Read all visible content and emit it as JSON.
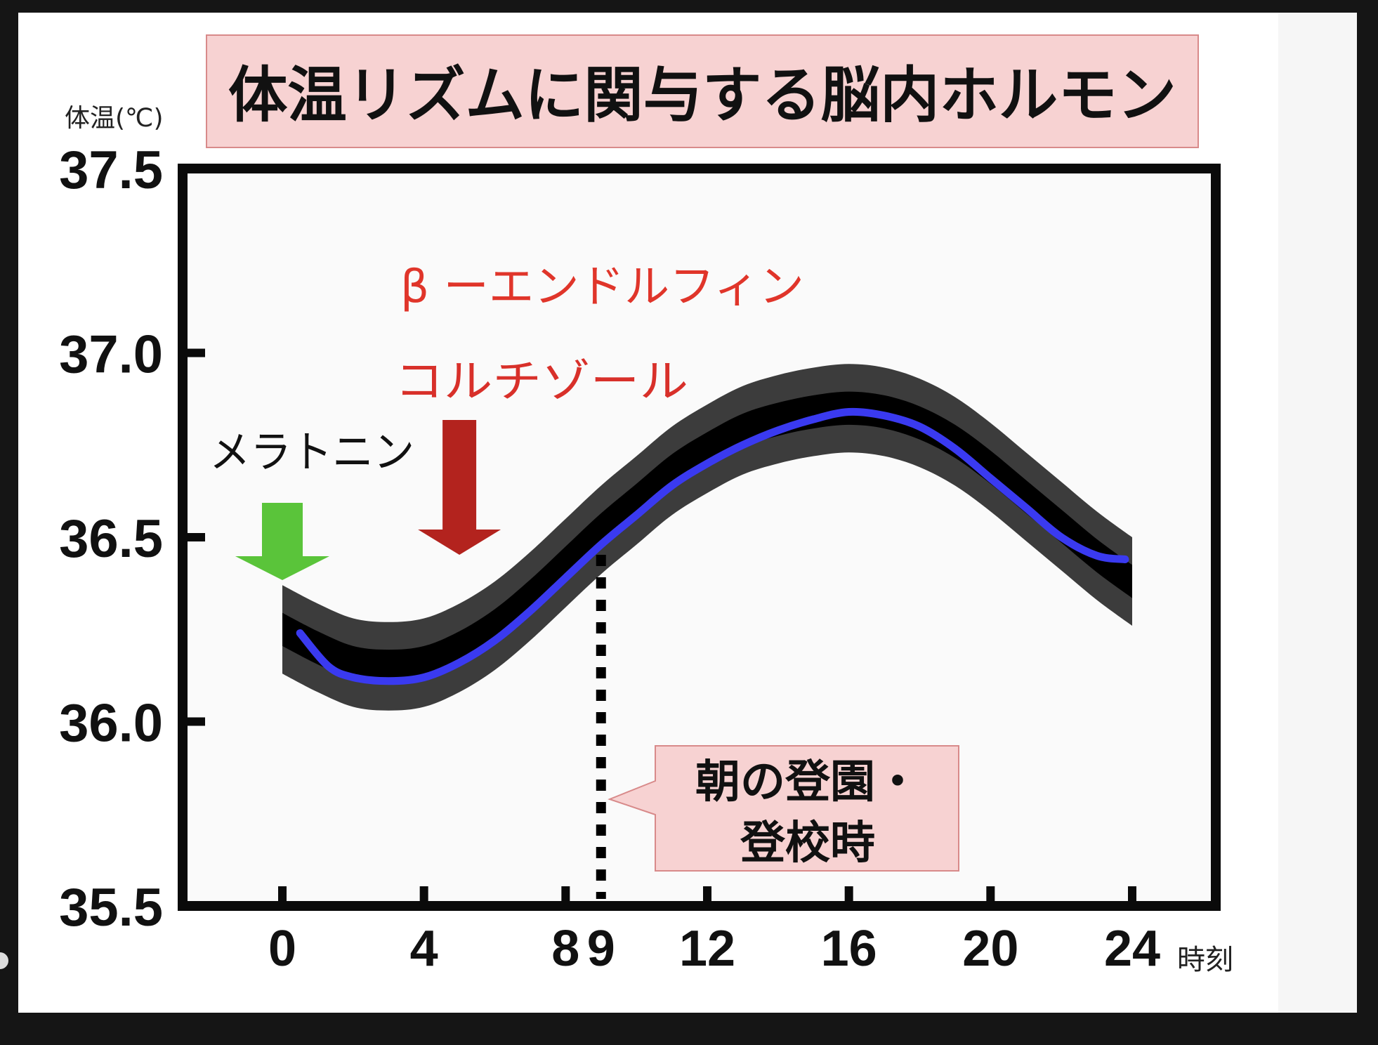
{
  "chart_data": {
    "type": "line",
    "title": "体温リズムに関与する脳内ホルモン",
    "ylabel": "体温(℃)",
    "xlabel": "時刻",
    "ylim": [
      35.5,
      37.5
    ],
    "xlim": [
      0,
      24
    ],
    "y_ticks": [
      "37.5",
      "37.0",
      "36.5",
      "36.0",
      "35.5"
    ],
    "y_tick_values": [
      37.5,
      37.0,
      36.5,
      36.0,
      35.5
    ],
    "x_ticks": [
      "0",
      "4",
      "8",
      "9",
      "12",
      "16",
      "20",
      "24"
    ],
    "x_tick_values": [
      0,
      4,
      8,
      9,
      12,
      16,
      20,
      24
    ],
    "grid": false,
    "band": {
      "x": [
        0,
        1,
        2,
        3,
        4,
        5,
        6,
        7,
        8,
        9,
        10,
        11,
        12,
        13,
        14,
        15,
        16,
        17,
        18,
        19,
        20,
        21,
        22,
        23,
        24
      ],
      "center": [
        36.25,
        36.2,
        36.16,
        36.15,
        36.16,
        36.2,
        36.26,
        36.34,
        36.43,
        36.52,
        36.6,
        36.68,
        36.74,
        36.79,
        36.82,
        36.84,
        36.85,
        36.84,
        36.81,
        36.76,
        36.69,
        36.61,
        36.53,
        36.45,
        36.38
      ],
      "half_width": 0.12,
      "inner_half_width": 0.045,
      "color": "#3c3c3c",
      "inner_color": "#000000"
    },
    "series": [
      {
        "x": [
          0.5,
          1.3,
          2,
          3,
          4,
          5,
          6,
          7,
          8,
          9,
          10,
          11,
          12,
          13,
          14,
          15,
          16,
          17,
          18,
          19,
          20,
          21,
          22,
          23,
          23.8
        ],
        "values": [
          36.24,
          36.15,
          36.12,
          36.11,
          36.12,
          36.16,
          36.22,
          36.3,
          36.39,
          36.48,
          36.56,
          36.64,
          36.7,
          36.75,
          36.79,
          36.82,
          36.84,
          36.83,
          36.8,
          36.74,
          36.66,
          36.58,
          36.5,
          36.45,
          36.44
        ],
        "color": "#3a3af0"
      }
    ],
    "annotations": {
      "beta_endorphin": "β ーエンドルフィン",
      "cortisol": "コルチゾール",
      "melatonin": "メラトニン",
      "callout": [
        "朝の登園・",
        "登校時"
      ]
    },
    "marker_line_x": 9,
    "arrows": {
      "melatonin": {
        "x": 0,
        "color": "#5ac43a"
      },
      "cortisol": {
        "x": 5,
        "color": "#b3231e"
      }
    },
    "colors": {
      "title_box": "#f7d2d2",
      "title_box_border": "#d88a8a",
      "beta_endorphin": "#e0352a",
      "cortisol": "#d8302a",
      "melatonin": "#111111",
      "callout_box": "#f7d2d2"
    }
  }
}
